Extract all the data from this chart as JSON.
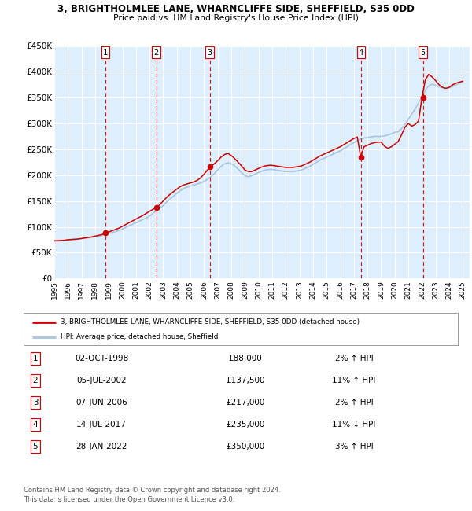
{
  "title1": "3, BRIGHTHOLMLEE LANE, WHARNCLIFFE SIDE, SHEFFIELD, S35 0DD",
  "title2": "Price paid vs. HM Land Registry's House Price Index (HPI)",
  "legend_line1": "3, BRIGHTHOLMLEE LANE, WHARNCLIFFE SIDE, SHEFFIELD, S35 0DD (detached house)",
  "legend_line2": "HPI: Average price, detached house, Sheffield",
  "footer1": "Contains HM Land Registry data © Crown copyright and database right 2024.",
  "footer2": "This data is licensed under the Open Government Licence v3.0.",
  "ylim": [
    0,
    450000
  ],
  "yticks": [
    0,
    50000,
    100000,
    150000,
    200000,
    250000,
    300000,
    350000,
    400000,
    450000
  ],
  "ytick_labels": [
    "£0",
    "£50K",
    "£100K",
    "£150K",
    "£200K",
    "£250K",
    "£300K",
    "£350K",
    "£400K",
    "£450K"
  ],
  "xlim_start": 1995.0,
  "xlim_end": 2025.5,
  "xticks": [
    1995,
    1996,
    1997,
    1998,
    1999,
    2000,
    2001,
    2002,
    2003,
    2004,
    2005,
    2006,
    2007,
    2008,
    2009,
    2010,
    2011,
    2012,
    2013,
    2014,
    2015,
    2016,
    2017,
    2018,
    2019,
    2020,
    2021,
    2022,
    2023,
    2024,
    2025
  ],
  "hpi_color": "#aac4e0",
  "price_color": "#cc0000",
  "sale_marker_color": "#cc0000",
  "dashed_line_color": "#cc0000",
  "bg_color": "#ddeeff",
  "grid_color": "#ffffff",
  "sale_events": [
    {
      "num": 1,
      "date_str": "02-OCT-1998",
      "year": 1998.75,
      "price": 88000,
      "hpi_pct": "2%",
      "direction": "↑"
    },
    {
      "num": 2,
      "date_str": "05-JUL-2002",
      "year": 2002.5,
      "price": 137500,
      "hpi_pct": "11%",
      "direction": "↑"
    },
    {
      "num": 3,
      "date_str": "07-JUN-2006",
      "year": 2006.43,
      "price": 217000,
      "hpi_pct": "2%",
      "direction": "↑"
    },
    {
      "num": 4,
      "date_str": "14-JUL-2017",
      "year": 2017.53,
      "price": 235000,
      "hpi_pct": "11%",
      "direction": "↓"
    },
    {
      "num": 5,
      "date_str": "28-JAN-2022",
      "year": 2022.07,
      "price": 350000,
      "hpi_pct": "3%",
      "direction": "↑"
    }
  ],
  "hpi_data": [
    [
      1995.0,
      72000
    ],
    [
      1995.25,
      72500
    ],
    [
      1995.5,
      73000
    ],
    [
      1995.75,
      73500
    ],
    [
      1996.0,
      74500
    ],
    [
      1996.25,
      75000
    ],
    [
      1996.5,
      75500
    ],
    [
      1996.75,
      76000
    ],
    [
      1997.0,
      77000
    ],
    [
      1997.25,
      78000
    ],
    [
      1997.5,
      79000
    ],
    [
      1997.75,
      80000
    ],
    [
      1998.0,
      81000
    ],
    [
      1998.25,
      82000
    ],
    [
      1998.5,
      83000
    ],
    [
      1998.75,
      85000
    ],
    [
      1999.0,
      87000
    ],
    [
      1999.25,
      89000
    ],
    [
      1999.5,
      91000
    ],
    [
      1999.75,
      93000
    ],
    [
      2000.0,
      96000
    ],
    [
      2000.25,
      99000
    ],
    [
      2000.5,
      102000
    ],
    [
      2000.75,
      105000
    ],
    [
      2001.0,
      108000
    ],
    [
      2001.25,
      111000
    ],
    [
      2001.5,
      114000
    ],
    [
      2001.75,
      117000
    ],
    [
      2002.0,
      121000
    ],
    [
      2002.25,
      126000
    ],
    [
      2002.5,
      131000
    ],
    [
      2002.75,
      136000
    ],
    [
      2003.0,
      141000
    ],
    [
      2003.25,
      148000
    ],
    [
      2003.5,
      154000
    ],
    [
      2003.75,
      159000
    ],
    [
      2004.0,
      165000
    ],
    [
      2004.25,
      170000
    ],
    [
      2004.5,
      174000
    ],
    [
      2004.75,
      177000
    ],
    [
      2005.0,
      179000
    ],
    [
      2005.25,
      181000
    ],
    [
      2005.5,
      183000
    ],
    [
      2005.75,
      185000
    ],
    [
      2006.0,
      188000
    ],
    [
      2006.25,
      192000
    ],
    [
      2006.5,
      197000
    ],
    [
      2006.75,
      203000
    ],
    [
      2007.0,
      210000
    ],
    [
      2007.25,
      217000
    ],
    [
      2007.5,
      222000
    ],
    [
      2007.75,
      224000
    ],
    [
      2008.0,
      222000
    ],
    [
      2008.25,
      218000
    ],
    [
      2008.5,
      212000
    ],
    [
      2008.75,
      205000
    ],
    [
      2009.0,
      199000
    ],
    [
      2009.25,
      197000
    ],
    [
      2009.5,
      199000
    ],
    [
      2009.75,
      202000
    ],
    [
      2010.0,
      205000
    ],
    [
      2010.25,
      208000
    ],
    [
      2010.5,
      210000
    ],
    [
      2010.75,
      211000
    ],
    [
      2011.0,
      211000
    ],
    [
      2011.25,
      210000
    ],
    [
      2011.5,
      209000
    ],
    [
      2011.75,
      208000
    ],
    [
      2012.0,
      207000
    ],
    [
      2012.25,
      207000
    ],
    [
      2012.5,
      207000
    ],
    [
      2012.75,
      208000
    ],
    [
      2013.0,
      209000
    ],
    [
      2013.25,
      211000
    ],
    [
      2013.5,
      214000
    ],
    [
      2013.75,
      217000
    ],
    [
      2014.0,
      221000
    ],
    [
      2014.25,
      225000
    ],
    [
      2014.5,
      229000
    ],
    [
      2014.75,
      232000
    ],
    [
      2015.0,
      235000
    ],
    [
      2015.25,
      238000
    ],
    [
      2015.5,
      241000
    ],
    [
      2015.75,
      244000
    ],
    [
      2016.0,
      247000
    ],
    [
      2016.25,
      251000
    ],
    [
      2016.5,
      255000
    ],
    [
      2016.75,
      259000
    ],
    [
      2017.0,
      263000
    ],
    [
      2017.25,
      267000
    ],
    [
      2017.5,
      270000
    ],
    [
      2017.75,
      272000
    ],
    [
      2018.0,
      273000
    ],
    [
      2018.25,
      274000
    ],
    [
      2018.5,
      275000
    ],
    [
      2018.75,
      275000
    ],
    [
      2019.0,
      275000
    ],
    [
      2019.25,
      276000
    ],
    [
      2019.5,
      278000
    ],
    [
      2019.75,
      280000
    ],
    [
      2020.0,
      283000
    ],
    [
      2020.25,
      284000
    ],
    [
      2020.5,
      290000
    ],
    [
      2020.75,
      298000
    ],
    [
      2021.0,
      308000
    ],
    [
      2021.25,
      318000
    ],
    [
      2021.5,
      328000
    ],
    [
      2021.75,
      340000
    ],
    [
      2022.0,
      352000
    ],
    [
      2022.25,
      365000
    ],
    [
      2022.5,
      373000
    ],
    [
      2022.75,
      376000
    ],
    [
      2023.0,
      374000
    ],
    [
      2023.25,
      371000
    ],
    [
      2023.5,
      369000
    ],
    [
      2023.75,
      368000
    ],
    [
      2024.0,
      369000
    ],
    [
      2024.25,
      372000
    ],
    [
      2024.5,
      375000
    ],
    [
      2024.75,
      378000
    ],
    [
      2025.0,
      381000
    ]
  ],
  "price_data": [
    [
      1995.0,
      73000
    ],
    [
      1995.25,
      73200
    ],
    [
      1995.5,
      73500
    ],
    [
      1995.75,
      74000
    ],
    [
      1996.0,
      75000
    ],
    [
      1996.25,
      75500
    ],
    [
      1996.5,
      76000
    ],
    [
      1996.75,
      76500
    ],
    [
      1997.0,
      77500
    ],
    [
      1997.25,
      78500
    ],
    [
      1997.5,
      79500
    ],
    [
      1997.75,
      80500
    ],
    [
      1998.0,
      82000
    ],
    [
      1998.25,
      83500
    ],
    [
      1998.5,
      85000
    ],
    [
      1998.75,
      88000
    ],
    [
      1999.0,
      90000
    ],
    [
      1999.25,
      92500
    ],
    [
      1999.5,
      95000
    ],
    [
      1999.75,
      97500
    ],
    [
      2000.0,
      101000
    ],
    [
      2000.25,
      104500
    ],
    [
      2000.5,
      108000
    ],
    [
      2000.75,
      111500
    ],
    [
      2001.0,
      115000
    ],
    [
      2001.25,
      118500
    ],
    [
      2001.5,
      122000
    ],
    [
      2001.75,
      126000
    ],
    [
      2002.0,
      130000
    ],
    [
      2002.25,
      134000
    ],
    [
      2002.5,
      137500
    ],
    [
      2002.75,
      143000
    ],
    [
      2003.0,
      150000
    ],
    [
      2003.25,
      157000
    ],
    [
      2003.5,
      163000
    ],
    [
      2003.75,
      168000
    ],
    [
      2004.0,
      173000
    ],
    [
      2004.25,
      178000
    ],
    [
      2004.5,
      181000
    ],
    [
      2004.75,
      183000
    ],
    [
      2005.0,
      185000
    ],
    [
      2005.25,
      187000
    ],
    [
      2005.5,
      190000
    ],
    [
      2005.75,
      195000
    ],
    [
      2006.0,
      202000
    ],
    [
      2006.25,
      210000
    ],
    [
      2006.5,
      217000
    ],
    [
      2006.75,
      222000
    ],
    [
      2007.0,
      228000
    ],
    [
      2007.25,
      235000
    ],
    [
      2007.5,
      240000
    ],
    [
      2007.75,
      242000
    ],
    [
      2008.0,
      238000
    ],
    [
      2008.25,
      232000
    ],
    [
      2008.5,
      225000
    ],
    [
      2008.75,
      218000
    ],
    [
      2009.0,
      210000
    ],
    [
      2009.25,
      207000
    ],
    [
      2009.5,
      207000
    ],
    [
      2009.75,
      210000
    ],
    [
      2010.0,
      213000
    ],
    [
      2010.25,
      216000
    ],
    [
      2010.5,
      218000
    ],
    [
      2010.75,
      219000
    ],
    [
      2011.0,
      219000
    ],
    [
      2011.25,
      218000
    ],
    [
      2011.5,
      217000
    ],
    [
      2011.75,
      216000
    ],
    [
      2012.0,
      215000
    ],
    [
      2012.25,
      215000
    ],
    [
      2012.5,
      215000
    ],
    [
      2012.75,
      216000
    ],
    [
      2013.0,
      217000
    ],
    [
      2013.25,
      219000
    ],
    [
      2013.5,
      222000
    ],
    [
      2013.75,
      225000
    ],
    [
      2014.0,
      229000
    ],
    [
      2014.25,
      233000
    ],
    [
      2014.5,
      237000
    ],
    [
      2014.75,
      240000
    ],
    [
      2015.0,
      243000
    ],
    [
      2015.25,
      246000
    ],
    [
      2015.5,
      249000
    ],
    [
      2015.75,
      252000
    ],
    [
      2016.0,
      255000
    ],
    [
      2016.25,
      259000
    ],
    [
      2016.5,
      263000
    ],
    [
      2016.75,
      267000
    ],
    [
      2017.0,
      271000
    ],
    [
      2017.25,
      274000
    ],
    [
      2017.5,
      235000
    ],
    [
      2017.75,
      255000
    ],
    [
      2018.0,
      258000
    ],
    [
      2018.25,
      261000
    ],
    [
      2018.5,
      263000
    ],
    [
      2018.75,
      264000
    ],
    [
      2019.0,
      264000
    ],
    [
      2019.25,
      256000
    ],
    [
      2019.5,
      252000
    ],
    [
      2019.75,
      255000
    ],
    [
      2020.0,
      260000
    ],
    [
      2020.25,
      265000
    ],
    [
      2020.5,
      278000
    ],
    [
      2020.75,
      293000
    ],
    [
      2021.0,
      300000
    ],
    [
      2021.25,
      295000
    ],
    [
      2021.5,
      298000
    ],
    [
      2021.75,
      305000
    ],
    [
      2022.0,
      350000
    ],
    [
      2022.25,
      385000
    ],
    [
      2022.5,
      395000
    ],
    [
      2022.75,
      390000
    ],
    [
      2023.0,
      383000
    ],
    [
      2023.25,
      375000
    ],
    [
      2023.5,
      370000
    ],
    [
      2023.75,
      368000
    ],
    [
      2024.0,
      370000
    ],
    [
      2024.25,
      375000
    ],
    [
      2024.5,
      378000
    ],
    [
      2024.75,
      380000
    ],
    [
      2025.0,
      382000
    ]
  ]
}
